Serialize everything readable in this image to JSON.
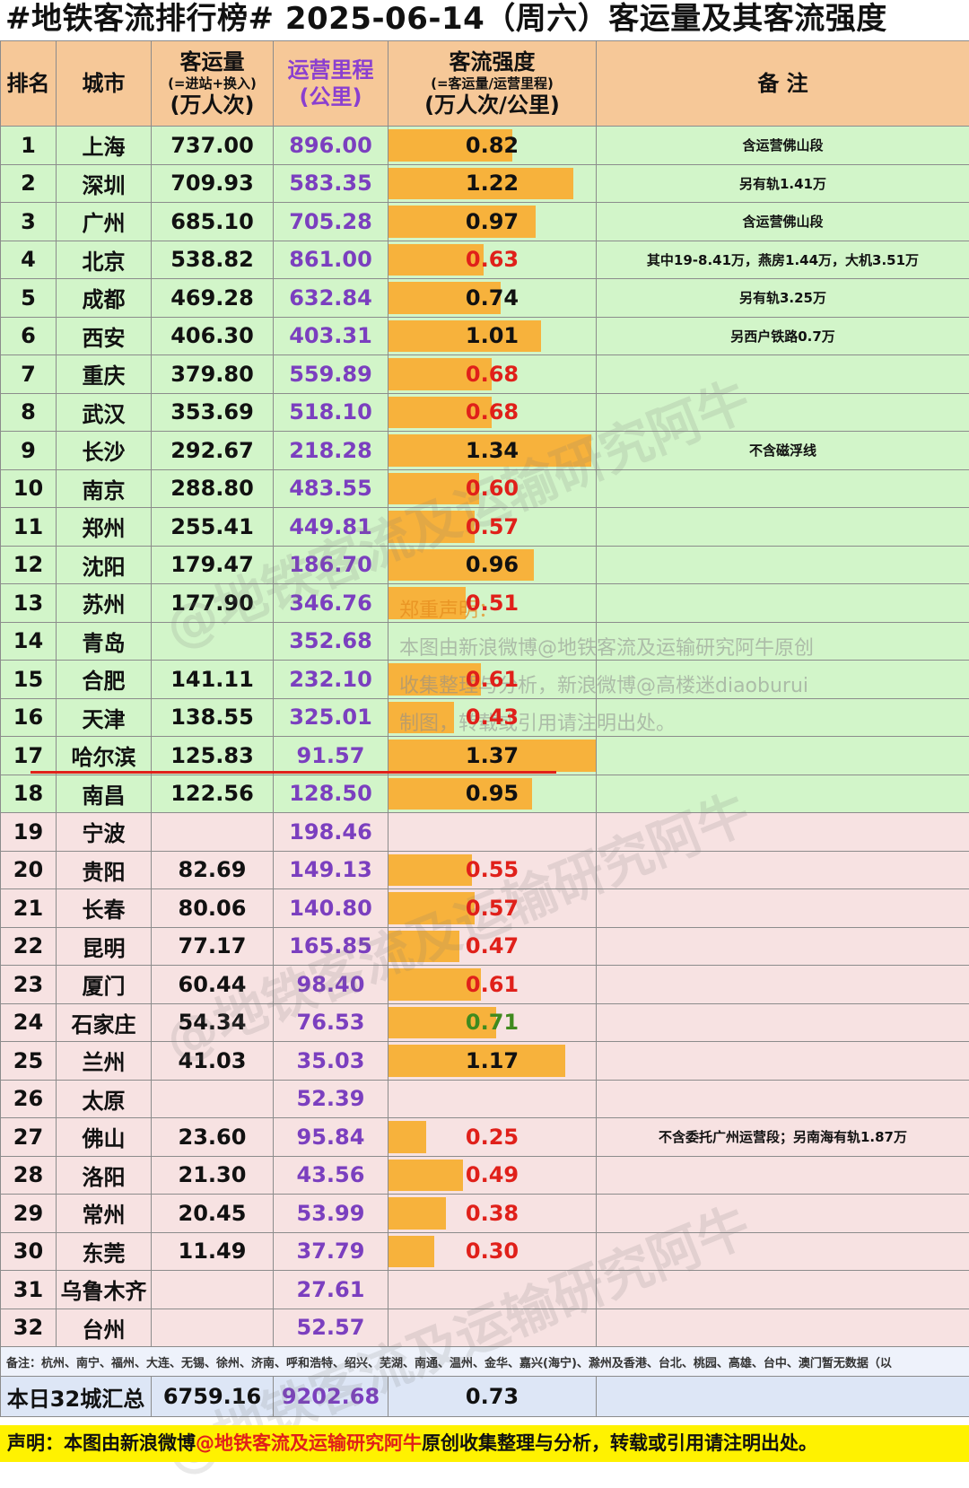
{
  "title": "#地铁客流排行榜# 2025-06-14（周六）客运量及其客流强度",
  "headers": {
    "rank": "排名",
    "city": "城市",
    "ridership": "客运量",
    "ridership_sub": "(=进站+换入)",
    "ridership_unit": "(万人次)",
    "distance": "运营里程",
    "distance_unit": "(公里)",
    "intensity": "客流强度",
    "intensity_sub": "(=客运量/运营里程)",
    "intensity_unit": "(万人次/公里)",
    "note": "备 注"
  },
  "chart_data": {
    "type": "table",
    "title": "#地铁客流排行榜# 2025-06-14（周六）客运量及其客流强度",
    "columns": [
      "排名",
      "城市",
      "客运量",
      "运营里程",
      "客流强度",
      "备 注"
    ],
    "bar_scale_max": 1.37,
    "rows": [
      {
        "rank": "1",
        "city": "上海",
        "ridership": "737.00",
        "distance": "896.00",
        "intensity": 0.82,
        "intensity_text": "0.82",
        "color": "#111111",
        "note": "含运营佛山段",
        "group": "green"
      },
      {
        "rank": "2",
        "city": "深圳",
        "ridership": "709.93",
        "distance": "583.35",
        "intensity": 1.22,
        "intensity_text": "1.22",
        "color": "#111111",
        "note": "另有轨1.41万",
        "group": "green"
      },
      {
        "rank": "3",
        "city": "广州",
        "ridership": "685.10",
        "distance": "705.28",
        "intensity": 0.97,
        "intensity_text": "0.97",
        "color": "#111111",
        "note": "含运营佛山段",
        "group": "green"
      },
      {
        "rank": "4",
        "city": "北京",
        "ridership": "538.82",
        "distance": "861.00",
        "intensity": 0.63,
        "intensity_text": "0.63",
        "color": "#e0201a",
        "note": "其中19-8.41万，燕房1.44万，大机3.51万",
        "group": "green"
      },
      {
        "rank": "5",
        "city": "成都",
        "ridership": "469.28",
        "distance": "632.84",
        "intensity": 0.74,
        "intensity_text": "0.74",
        "color": "#111111",
        "note": "另有轨3.25万",
        "group": "green"
      },
      {
        "rank": "6",
        "city": "西安",
        "ridership": "406.30",
        "distance": "403.31",
        "intensity": 1.01,
        "intensity_text": "1.01",
        "color": "#111111",
        "note": "另西户铁路0.7万",
        "group": "green"
      },
      {
        "rank": "7",
        "city": "重庆",
        "ridership": "379.80",
        "distance": "559.89",
        "intensity": 0.68,
        "intensity_text": "0.68",
        "color": "#e0201a",
        "note": "",
        "group": "green"
      },
      {
        "rank": "8",
        "city": "武汉",
        "ridership": "353.69",
        "distance": "518.10",
        "intensity": 0.68,
        "intensity_text": "0.68",
        "color": "#e0201a",
        "note": "",
        "group": "green"
      },
      {
        "rank": "9",
        "city": "长沙",
        "ridership": "292.67",
        "distance": "218.28",
        "intensity": 1.34,
        "intensity_text": "1.34",
        "color": "#111111",
        "note": "不含磁浮线",
        "group": "green"
      },
      {
        "rank": "10",
        "city": "南京",
        "ridership": "288.80",
        "distance": "483.55",
        "intensity": 0.6,
        "intensity_text": "0.60",
        "color": "#e0201a",
        "note": "",
        "group": "green"
      },
      {
        "rank": "11",
        "city": "郑州",
        "ridership": "255.41",
        "distance": "449.81",
        "intensity": 0.57,
        "intensity_text": "0.57",
        "color": "#e0201a",
        "note": "",
        "group": "green"
      },
      {
        "rank": "12",
        "city": "沈阳",
        "ridership": "179.47",
        "distance": "186.70",
        "intensity": 0.96,
        "intensity_text": "0.96",
        "color": "#111111",
        "note": "",
        "group": "green"
      },
      {
        "rank": "13",
        "city": "苏州",
        "ridership": "177.90",
        "distance": "346.76",
        "intensity": 0.51,
        "intensity_text": "0.51",
        "color": "#e0201a",
        "note": "",
        "group": "green"
      },
      {
        "rank": "14",
        "city": "青岛",
        "ridership": "",
        "distance": "352.68",
        "intensity": null,
        "intensity_text": "",
        "color": "#111111",
        "note": "",
        "group": "green"
      },
      {
        "rank": "15",
        "city": "合肥",
        "ridership": "141.11",
        "distance": "232.10",
        "intensity": 0.61,
        "intensity_text": "0.61",
        "color": "#e0201a",
        "note": "",
        "group": "green"
      },
      {
        "rank": "16",
        "city": "天津",
        "ridership": "138.55",
        "distance": "325.01",
        "intensity": 0.43,
        "intensity_text": "0.43",
        "color": "#e0201a",
        "note": "",
        "group": "green"
      },
      {
        "rank": "17",
        "city": "哈尔滨",
        "ridership": "125.83",
        "distance": "91.57",
        "intensity": 1.37,
        "intensity_text": "1.37",
        "color": "#111111",
        "note": "",
        "group": "green"
      },
      {
        "rank": "18",
        "city": "南昌",
        "ridership": "122.56",
        "distance": "128.50",
        "intensity": 0.95,
        "intensity_text": "0.95",
        "color": "#111111",
        "note": "",
        "group": "green"
      },
      {
        "rank": "19",
        "city": "宁波",
        "ridership": "",
        "distance": "198.46",
        "intensity": null,
        "intensity_text": "",
        "color": "#111111",
        "note": "",
        "group": "pink"
      },
      {
        "rank": "20",
        "city": "贵阳",
        "ridership": "82.69",
        "distance": "149.13",
        "intensity": 0.55,
        "intensity_text": "0.55",
        "color": "#e0201a",
        "note": "",
        "group": "pink"
      },
      {
        "rank": "21",
        "city": "长春",
        "ridership": "80.06",
        "distance": "140.80",
        "intensity": 0.57,
        "intensity_text": "0.57",
        "color": "#e0201a",
        "note": "",
        "group": "pink"
      },
      {
        "rank": "22",
        "city": "昆明",
        "ridership": "77.17",
        "distance": "165.85",
        "intensity": 0.47,
        "intensity_text": "0.47",
        "color": "#e0201a",
        "note": "",
        "group": "pink"
      },
      {
        "rank": "23",
        "city": "厦门",
        "ridership": "60.44",
        "distance": "98.40",
        "intensity": 0.61,
        "intensity_text": "0.61",
        "color": "#e0201a",
        "note": "",
        "group": "pink"
      },
      {
        "rank": "24",
        "city": "石家庄",
        "ridership": "54.34",
        "distance": "76.53",
        "intensity": 0.71,
        "intensity_text": "0.71",
        "color": "#3f8a1e",
        "note": "",
        "group": "pink"
      },
      {
        "rank": "25",
        "city": "兰州",
        "ridership": "41.03",
        "distance": "35.03",
        "intensity": 1.17,
        "intensity_text": "1.17",
        "color": "#111111",
        "note": "",
        "group": "pink"
      },
      {
        "rank": "26",
        "city": "太原",
        "ridership": "",
        "distance": "52.39",
        "intensity": null,
        "intensity_text": "",
        "color": "#111111",
        "note": "",
        "group": "pink"
      },
      {
        "rank": "27",
        "city": "佛山",
        "ridership": "23.60",
        "distance": "95.84",
        "intensity": 0.25,
        "intensity_text": "0.25",
        "color": "#e0201a",
        "note": "不含委托广州运营段；另南海有轨1.87万",
        "group": "pink"
      },
      {
        "rank": "28",
        "city": "洛阳",
        "ridership": "21.30",
        "distance": "43.56",
        "intensity": 0.49,
        "intensity_text": "0.49",
        "color": "#e0201a",
        "note": "",
        "group": "pink"
      },
      {
        "rank": "29",
        "city": "常州",
        "ridership": "20.45",
        "distance": "53.99",
        "intensity": 0.38,
        "intensity_text": "0.38",
        "color": "#e0201a",
        "note": "",
        "group": "pink"
      },
      {
        "rank": "30",
        "city": "东莞",
        "ridership": "11.49",
        "distance": "37.79",
        "intensity": 0.3,
        "intensity_text": "0.30",
        "color": "#e0201a",
        "note": "",
        "group": "pink"
      },
      {
        "rank": "31",
        "city": "乌鲁木齐",
        "ridership": "",
        "distance": "27.61",
        "intensity": null,
        "intensity_text": "",
        "color": "#111111",
        "note": "",
        "group": "pink"
      },
      {
        "rank": "32",
        "city": "台州",
        "ridership": "",
        "distance": "52.57",
        "intensity": null,
        "intensity_text": "",
        "color": "#111111",
        "note": "",
        "group": "pink"
      }
    ]
  },
  "footnote": "备注：杭州、南宁、福州、大连、无锡、徐州、济南、呼和浩特、绍兴、芜湖、南通、温州、金华、嘉兴(海宁)、滁州及香港、台北、桃园、高雄、台中、澳门暂无数据（以",
  "total": {
    "label": "本日32城汇总",
    "ridership": "6759.16",
    "distance": "9202.68",
    "intensity": "0.73"
  },
  "notice": {
    "heading": "郑重声明：",
    "line1": "本图由新浪微博@地铁客流及运输研究阿牛原创",
    "line2": "收集整理与分析，新浪微博@高楼迷diaoburui",
    "line3": "制图，转载或引用请注明出处。"
  },
  "statement": {
    "prefix": "声明：本图由新浪微博",
    "handle": "@地铁客流及运输研究阿牛",
    "suffix": "原创收集整理与分析，转载或引用请注明出处。"
  },
  "watermark": "@地铁客流及运输研究阿牛"
}
